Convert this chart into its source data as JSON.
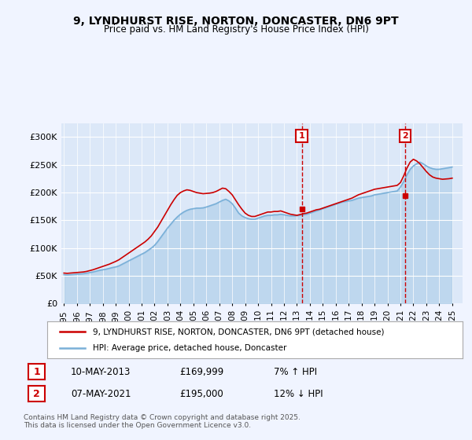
{
  "title": "9, LYNDHURST RISE, NORTON, DONCASTER, DN6 9PT",
  "subtitle": "Price paid vs. HM Land Registry's House Price Index (HPI)",
  "ylabel": "",
  "background_color": "#f0f4ff",
  "plot_bg_color": "#dce8f8",
  "red_line_color": "#cc0000",
  "blue_line_color": "#7ab0d8",
  "sale1_date": "10-MAY-2013",
  "sale1_price": 169999,
  "sale1_pct": "7% ↑ HPI",
  "sale2_date": "07-MAY-2021",
  "sale2_price": 195000,
  "sale2_pct": "12% ↓ HPI",
  "legend_label1": "9, LYNDHURST RISE, NORTON, DONCASTER, DN6 9PT (detached house)",
  "legend_label2": "HPI: Average price, detached house, Doncaster",
  "footnote": "Contains HM Land Registry data © Crown copyright and database right 2025.\nThis data is licensed under the Open Government Licence v3.0.",
  "ylim_min": 0,
  "ylim_max": 325000,
  "yticks": [
    0,
    50000,
    100000,
    150000,
    200000,
    250000,
    300000
  ],
  "ytick_labels": [
    "£0",
    "£50K",
    "£100K",
    "£150K",
    "£200K",
    "£250K",
    "£300K"
  ],
  "x_start_year": 1995,
  "x_end_year": 2026,
  "xticks": [
    1995,
    1996,
    1997,
    1998,
    1999,
    2000,
    2001,
    2002,
    2003,
    2004,
    2005,
    2006,
    2007,
    2008,
    2009,
    2010,
    2011,
    2012,
    2013,
    2014,
    2015,
    2016,
    2017,
    2018,
    2019,
    2020,
    2021,
    2022,
    2023,
    2024,
    2025
  ],
  "hpi_x": [
    1995.0,
    1995.25,
    1995.5,
    1995.75,
    1996.0,
    1996.25,
    1996.5,
    1996.75,
    1997.0,
    1997.25,
    1997.5,
    1997.75,
    1998.0,
    1998.25,
    1998.5,
    1998.75,
    1999.0,
    1999.25,
    1999.5,
    1999.75,
    2000.0,
    2000.25,
    2000.5,
    2000.75,
    2001.0,
    2001.25,
    2001.5,
    2001.75,
    2002.0,
    2002.25,
    2002.5,
    2002.75,
    2003.0,
    2003.25,
    2003.5,
    2003.75,
    2004.0,
    2004.25,
    2004.5,
    2004.75,
    2005.0,
    2005.25,
    2005.5,
    2005.75,
    2006.0,
    2006.25,
    2006.5,
    2006.75,
    2007.0,
    2007.25,
    2007.5,
    2007.75,
    2008.0,
    2008.25,
    2008.5,
    2008.75,
    2009.0,
    2009.25,
    2009.5,
    2009.75,
    2010.0,
    2010.25,
    2010.5,
    2010.75,
    2011.0,
    2011.25,
    2011.5,
    2011.75,
    2012.0,
    2012.25,
    2012.5,
    2012.75,
    2013.0,
    2013.25,
    2013.5,
    2013.75,
    2014.0,
    2014.25,
    2014.5,
    2014.75,
    2015.0,
    2015.25,
    2015.5,
    2015.75,
    2016.0,
    2016.25,
    2016.5,
    2016.75,
    2017.0,
    2017.25,
    2017.5,
    2017.75,
    2018.0,
    2018.25,
    2018.5,
    2018.75,
    2019.0,
    2019.25,
    2019.5,
    2019.75,
    2020.0,
    2020.25,
    2020.5,
    2020.75,
    2021.0,
    2021.25,
    2021.5,
    2021.75,
    2022.0,
    2022.25,
    2022.5,
    2022.75,
    2023.0,
    2023.25,
    2023.5,
    2023.75,
    2024.0,
    2024.25,
    2024.5,
    2024.75,
    2025.0
  ],
  "hpi_y": [
    52000,
    51500,
    52000,
    52500,
    53000,
    53500,
    54000,
    55000,
    56000,
    57000,
    58500,
    60000,
    61000,
    62000,
    63500,
    65000,
    66000,
    68000,
    71000,
    74000,
    77000,
    80000,
    83000,
    86000,
    89000,
    92000,
    96000,
    100000,
    105000,
    112000,
    120000,
    128000,
    136000,
    143000,
    150000,
    156000,
    161000,
    165000,
    168000,
    170000,
    171000,
    172000,
    172000,
    172500,
    174000,
    176000,
    178000,
    180000,
    183000,
    186000,
    188000,
    185000,
    180000,
    172000,
    163000,
    158000,
    155000,
    153000,
    152000,
    152000,
    154000,
    156000,
    158000,
    159000,
    159000,
    160000,
    160000,
    161000,
    160000,
    159000,
    158000,
    158000,
    158500,
    159000,
    160000,
    161000,
    163000,
    165000,
    167000,
    169000,
    171000,
    173000,
    175000,
    177000,
    179000,
    181000,
    183000,
    184000,
    185000,
    186000,
    188000,
    190000,
    191000,
    192000,
    193000,
    194000,
    196000,
    197000,
    198000,
    199000,
    200000,
    201000,
    202000,
    203000,
    210000,
    220000,
    232000,
    242000,
    248000,
    252000,
    255000,
    252000,
    248000,
    245000,
    243000,
    242000,
    242000,
    243000,
    244000,
    245000,
    246000
  ],
  "red_x": [
    1995.0,
    1995.25,
    1995.5,
    1995.75,
    1996.0,
    1996.25,
    1996.5,
    1996.75,
    1997.0,
    1997.25,
    1997.5,
    1997.75,
    1998.0,
    1998.25,
    1998.5,
    1998.75,
    1999.0,
    1999.25,
    1999.5,
    1999.75,
    2000.0,
    2000.25,
    2000.5,
    2000.75,
    2001.0,
    2001.25,
    2001.5,
    2001.75,
    2002.0,
    2002.25,
    2002.5,
    2002.75,
    2003.0,
    2003.25,
    2003.5,
    2003.75,
    2004.0,
    2004.25,
    2004.5,
    2004.75,
    2005.0,
    2005.25,
    2005.5,
    2005.75,
    2006.0,
    2006.25,
    2006.5,
    2006.75,
    2007.0,
    2007.25,
    2007.5,
    2007.75,
    2008.0,
    2008.25,
    2008.5,
    2008.75,
    2009.0,
    2009.25,
    2009.5,
    2009.75,
    2010.0,
    2010.25,
    2010.5,
    2010.75,
    2011.0,
    2011.25,
    2011.5,
    2011.75,
    2012.0,
    2012.25,
    2012.5,
    2012.75,
    2013.0,
    2013.25,
    2013.5,
    2013.75,
    2014.0,
    2014.25,
    2014.5,
    2014.75,
    2015.0,
    2015.25,
    2015.5,
    2015.75,
    2016.0,
    2016.25,
    2016.5,
    2016.75,
    2017.0,
    2017.25,
    2017.5,
    2017.75,
    2018.0,
    2018.25,
    2018.5,
    2018.75,
    2019.0,
    2019.25,
    2019.5,
    2019.75,
    2020.0,
    2020.25,
    2020.5,
    2020.75,
    2021.0,
    2021.25,
    2021.5,
    2021.75,
    2022.0,
    2022.25,
    2022.5,
    2022.75,
    2023.0,
    2023.25,
    2023.5,
    2023.75,
    2024.0,
    2024.25,
    2024.5,
    2024.75,
    2025.0
  ],
  "red_y": [
    55000,
    54500,
    55000,
    55500,
    56000,
    56500,
    57000,
    58000,
    59500,
    61000,
    63000,
    65000,
    67000,
    69000,
    71000,
    73500,
    76000,
    79000,
    83000,
    87000,
    91000,
    95000,
    99000,
    103000,
    107000,
    111000,
    116000,
    122000,
    130000,
    138000,
    148000,
    158000,
    168000,
    178000,
    187000,
    195000,
    200000,
    203000,
    205000,
    204000,
    202000,
    200000,
    199000,
    198000,
    198500,
    199000,
    200000,
    202000,
    205000,
    208000,
    207000,
    202000,
    196000,
    187000,
    178000,
    170000,
    163000,
    159000,
    157000,
    157000,
    159000,
    161000,
    163000,
    165000,
    165000,
    166000,
    166000,
    167000,
    165000,
    163000,
    161000,
    160000,
    159000,
    160500,
    162000,
    163000,
    165000,
    167000,
    169000,
    170000,
    172000,
    174000,
    176000,
    178000,
    180000,
    182000,
    184000,
    186000,
    188000,
    190000,
    193000,
    196000,
    198000,
    200000,
    202000,
    204000,
    206000,
    207000,
    208000,
    209000,
    210000,
    211000,
    212000,
    213000,
    218000,
    230000,
    244000,
    255000,
    260000,
    257000,
    252000,
    245000,
    238000,
    232000,
    228000,
    226000,
    225000,
    224000,
    224500,
    225000,
    226000
  ],
  "sale1_x": 2013.37,
  "sale2_x": 2021.37
}
